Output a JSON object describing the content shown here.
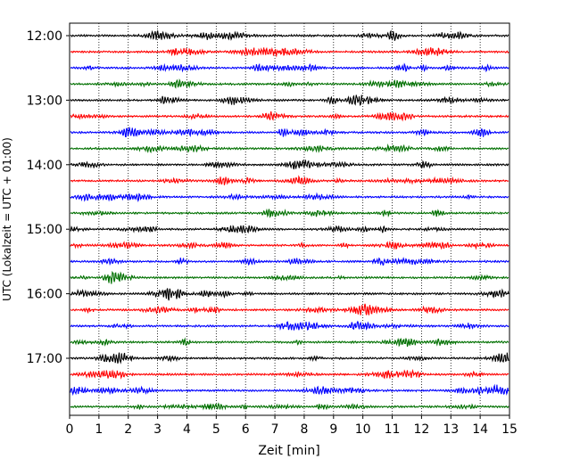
{
  "chart_data": {
    "type": "line",
    "title": "",
    "xlabel": "Zeit  [min]",
    "ylabel": "UTC (Lokalzeit = UTC + 01:00)",
    "xlim": [
      0,
      15
    ],
    "x_ticks": [
      "0",
      "1",
      "2",
      "3",
      "4",
      "5",
      "6",
      "7",
      "8",
      "9",
      "10",
      "11",
      "12",
      "13",
      "14",
      "15"
    ],
    "y_tick_labels": [
      "12:00",
      "13:00",
      "14:00",
      "15:00",
      "16:00",
      "17:00"
    ],
    "grid": "vertical dotted lines at each minute",
    "trace_start": "12:00",
    "trace_interval_min": 15,
    "trace_count": 24,
    "trace_colors": [
      "#000000",
      "#ff0000",
      "#0000ff",
      "#007000"
    ]
  }
}
